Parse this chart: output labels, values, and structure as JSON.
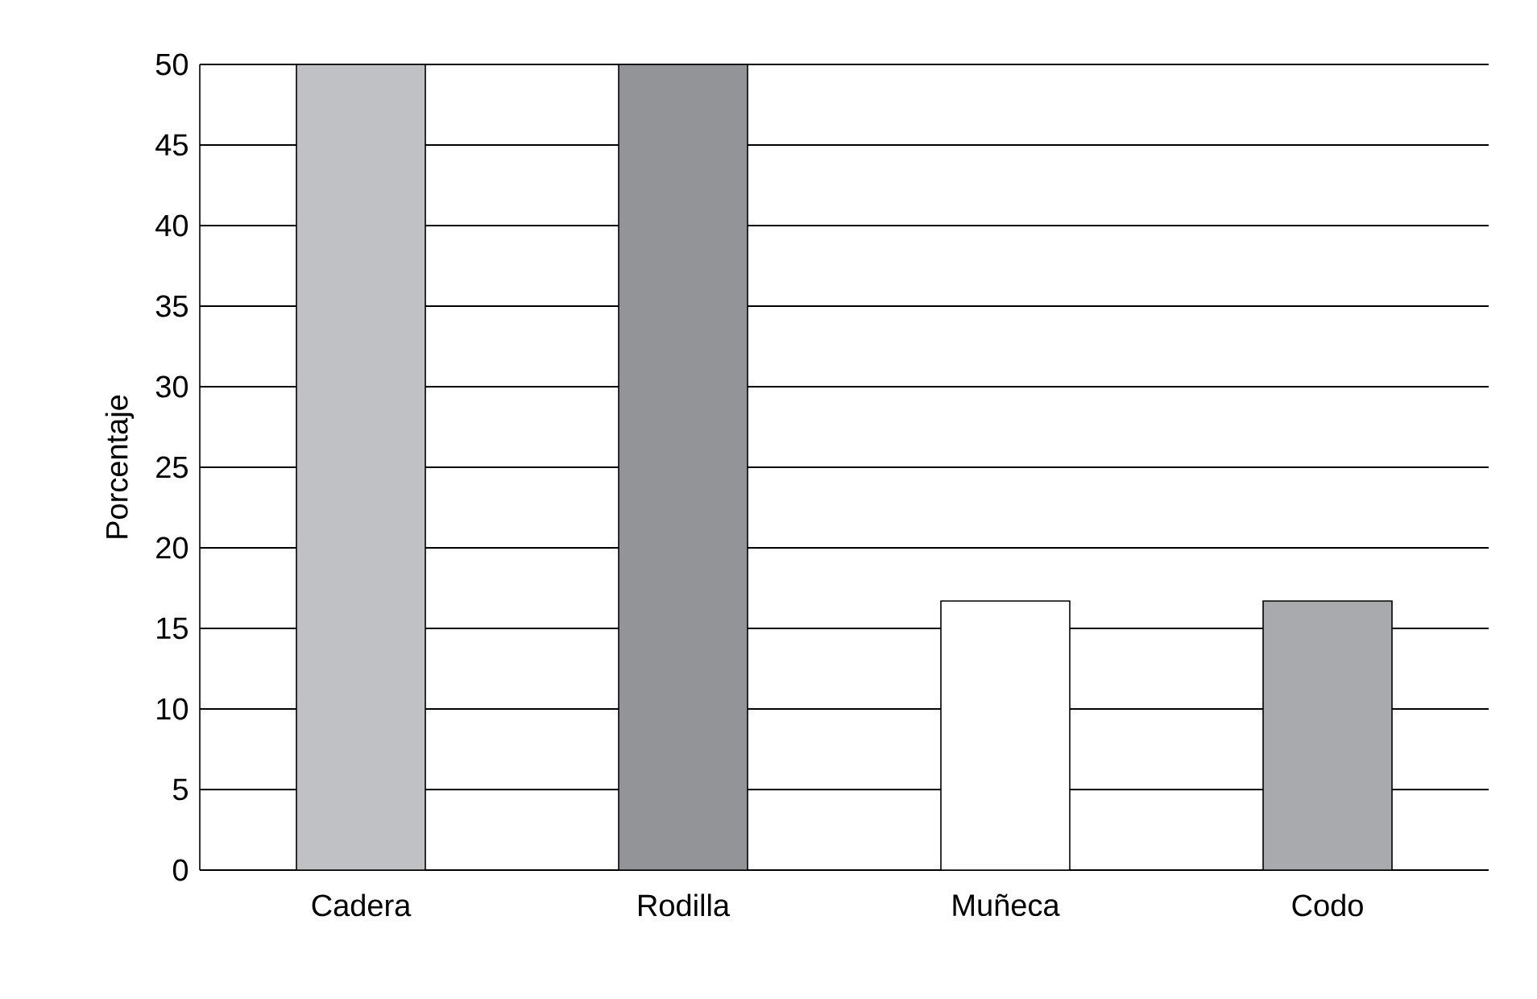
{
  "chart_data": {
    "type": "bar",
    "ylabel": "Porcentaje",
    "categories": [
      "Cadera",
      "Rodilla",
      "Muñeca",
      "Codo"
    ],
    "values": [
      50,
      50,
      16.7,
      16.7
    ],
    "colors": [
      "#c0c1c4",
      "#939498",
      "#ffffff",
      "#a9aaae"
    ],
    "ylim": [
      0,
      50
    ],
    "yticks": [
      0,
      5,
      10,
      15,
      20,
      25,
      30,
      35,
      40,
      45,
      50
    ],
    "grid": "y"
  }
}
